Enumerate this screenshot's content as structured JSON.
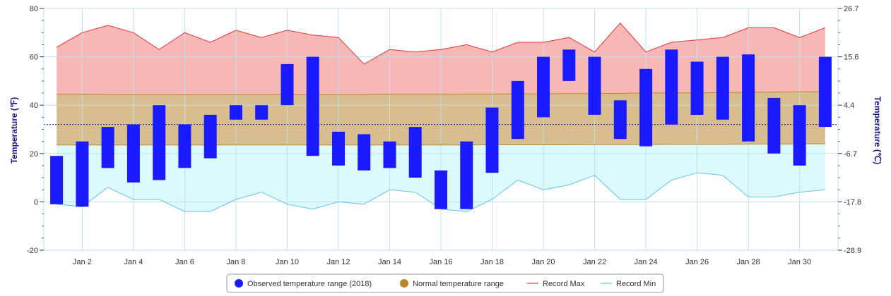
{
  "chart_data": {
    "type": "bar",
    "title": "",
    "x": [
      1,
      2,
      3,
      4,
      5,
      6,
      7,
      8,
      9,
      10,
      11,
      12,
      13,
      14,
      15,
      16,
      17,
      18,
      19,
      20,
      21,
      22,
      23,
      24,
      25,
      26,
      27,
      28,
      29,
      30,
      31
    ],
    "xticks": [
      {
        "x": 2,
        "label": "Jan 2"
      },
      {
        "x": 4,
        "label": "Jan 4"
      },
      {
        "x": 6,
        "label": "Jan 6"
      },
      {
        "x": 8,
        "label": "Jan 8"
      },
      {
        "x": 10,
        "label": "Jan 10"
      },
      {
        "x": 12,
        "label": "Jan 12"
      },
      {
        "x": 14,
        "label": "Jan 14"
      },
      {
        "x": 16,
        "label": "Jan 16"
      },
      {
        "x": 18,
        "label": "Jan 18"
      },
      {
        "x": 20,
        "label": "Jan 20"
      },
      {
        "x": 22,
        "label": "Jan 22"
      },
      {
        "x": 24,
        "label": "Jan 24"
      },
      {
        "x": 26,
        "label": "Jan 26"
      },
      {
        "x": 28,
        "label": "Jan 28"
      },
      {
        "x": 30,
        "label": "Jan 30"
      }
    ],
    "ylim": [
      -20,
      80
    ],
    "ylabel": "Temperature (℉)",
    "yticks": [
      {
        "value": 80,
        "label": "80"
      },
      {
        "value": 60,
        "label": "60"
      },
      {
        "value": 40,
        "label": "40"
      },
      {
        "value": 20,
        "label": "20"
      },
      {
        "value": 0,
        "label": "0"
      },
      {
        "value": -20,
        "label": "-20"
      }
    ],
    "y2label": "Temperature (℃)",
    "y2ticks": [
      {
        "value": 80,
        "label": "26.7"
      },
      {
        "value": 60,
        "label": "15.6"
      },
      {
        "value": 40,
        "label": "4.4"
      },
      {
        "value": 20,
        "label": "-6.7"
      },
      {
        "value": 0,
        "label": "-17.8"
      },
      {
        "value": -20,
        "label": "-28.9"
      }
    ],
    "reference_line": 32,
    "grid": true,
    "legend_position": "bottom",
    "series": [
      {
        "name": "Observed temperature range (2018)",
        "type": "columnrange",
        "color": "#1a1aff",
        "low": [
          -1,
          -2,
          14,
          8,
          9,
          14,
          18,
          34,
          34,
          40,
          19,
          15,
          13,
          14,
          10,
          -3,
          -3,
          12,
          26,
          35,
          50,
          36,
          26,
          23,
          32,
          36,
          34,
          25,
          20,
          15,
          31
        ],
        "high": [
          19,
          25,
          31,
          32,
          40,
          32,
          36,
          40,
          40,
          57,
          60,
          29,
          28,
          25,
          31,
          13,
          25,
          39,
          50,
          60,
          63,
          60,
          42,
          55,
          63,
          58,
          60,
          61,
          43,
          40,
          60
        ]
      },
      {
        "name": "Normal temperature range",
        "type": "arearange",
        "color": "#b8862b",
        "low": [
          23.5,
          23.5,
          23.5,
          23.5,
          23.5,
          23.5,
          23.5,
          23.5,
          23.5,
          23.5,
          23.5,
          23.5,
          23.5,
          23.5,
          23.5,
          23.5,
          23.5,
          23.6,
          23.6,
          23.6,
          23.6,
          23.7,
          23.7,
          23.7,
          23.8,
          23.8,
          23.8,
          23.9,
          23.9,
          24.0,
          24.0
        ],
        "high": [
          44.5,
          44.5,
          44.4,
          44.4,
          44.4,
          44.4,
          44.4,
          44.4,
          44.4,
          44.4,
          44.4,
          44.4,
          44.4,
          44.5,
          44.5,
          44.5,
          44.6,
          44.6,
          44.7,
          44.7,
          44.8,
          44.8,
          44.9,
          45.0,
          45.1,
          45.1,
          45.2,
          45.3,
          45.4,
          45.5,
          45.6
        ]
      },
      {
        "name": "Record Max",
        "type": "line",
        "color": "#e8333a",
        "values": [
          64,
          70,
          73,
          70,
          63,
          70,
          66,
          71,
          68,
          71,
          69,
          68,
          57,
          63,
          62,
          63,
          65,
          62,
          66,
          66,
          68,
          62,
          74,
          62,
          66,
          67,
          68,
          72,
          72,
          68,
          72
        ]
      },
      {
        "name": "Record Min",
        "type": "line",
        "color": "#66c2ee",
        "values": [
          -1,
          -2,
          6,
          1,
          1,
          -4,
          -4,
          1,
          4,
          -1,
          -3,
          0,
          -1,
          5,
          4,
          -3,
          -4,
          1,
          9,
          5,
          7,
          11,
          1,
          1,
          9,
          12,
          11,
          2,
          2,
          4,
          5
        ]
      }
    ]
  }
}
